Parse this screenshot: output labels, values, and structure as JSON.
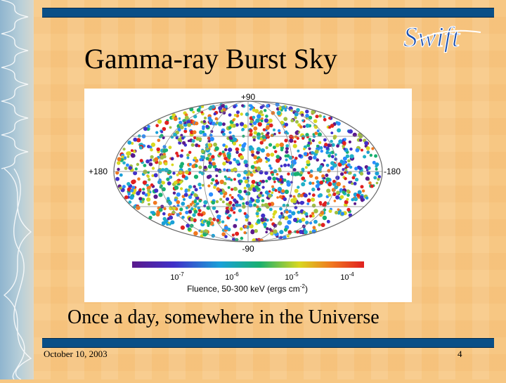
{
  "slide": {
    "title": "Gamma-ray Burst Sky",
    "subtitle": "Once a day, somewhere in the Universe",
    "footer_date": "October 10, 2003",
    "page_number": "4",
    "logo_text": "Swift"
  },
  "sky_map": {
    "labels": {
      "top": "+90",
      "bottom": "-90",
      "left": "+180",
      "right": "-180"
    },
    "colorbar": {
      "ticks": [
        "10",
        "10",
        "10",
        "10"
      ],
      "exponents": [
        "-7",
        "-6",
        "-5",
        "-4"
      ],
      "label_prefix": "Fluence, 50-300 keV (ergs cm",
      "label_exponent": "-2",
      "label_suffix": ")",
      "colors": [
        "#5b1a8c",
        "#4030c8",
        "#1aa0d8",
        "#18b070",
        "#d8d820",
        "#f07820",
        "#e02020"
      ]
    }
  },
  "colors": {
    "background": "#f7c783",
    "bar": "#0a4f87"
  }
}
